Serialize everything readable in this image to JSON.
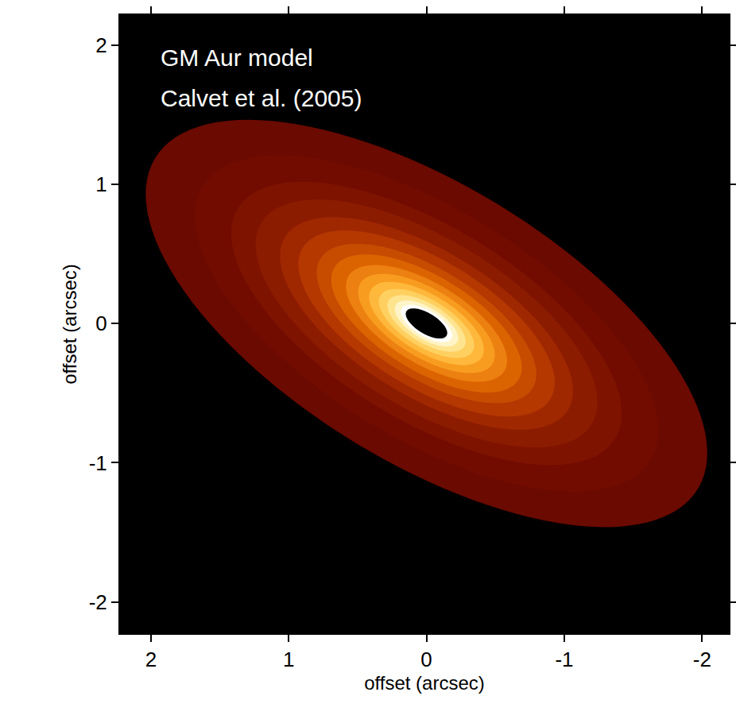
{
  "chart_data": {
    "type": "rings",
    "title": "GM Aur model",
    "subtitle": "Calvet et al. (2005)",
    "xlabel": "offset (arcsec)",
    "ylabel": "offset (arcsec)",
    "xlim": [
      2.23,
      -2.2
    ],
    "ylim": [
      -2.23,
      2.22
    ],
    "xticks": [
      2,
      1,
      0,
      -1,
      -2
    ],
    "yticks": [
      -2,
      -1,
      0,
      1,
      2
    ],
    "major_axis_angle": 31,
    "axis_ratio": 0.435,
    "rings": [
      {
        "radius": 2.3,
        "color": "#6a0a00"
      },
      {
        "radius": 1.9,
        "color": "#720c00"
      },
      {
        "radius": 1.6,
        "color": "#7e1300"
      },
      {
        "radius": 1.4,
        "color": "#8c1c00"
      },
      {
        "radius": 1.2,
        "color": "#a02800"
      },
      {
        "radius": 1.05,
        "color": "#b43800"
      },
      {
        "radius": 0.9,
        "color": "#c84c00"
      },
      {
        "radius": 0.78,
        "color": "#dc6400"
      },
      {
        "radius": 0.66,
        "color": "#ec8010"
      },
      {
        "radius": 0.56,
        "color": "#f89c20"
      },
      {
        "radius": 0.47,
        "color": "#ffb83c"
      },
      {
        "radius": 0.39,
        "color": "#ffd060"
      },
      {
        "radius": 0.32,
        "color": "#ffe490"
      },
      {
        "radius": 0.26,
        "color": "#fff4c8"
      },
      {
        "radius": 0.21,
        "color": "#ffffff"
      }
    ],
    "hole": {
      "radius": 0.17,
      "color": "#000000"
    }
  }
}
